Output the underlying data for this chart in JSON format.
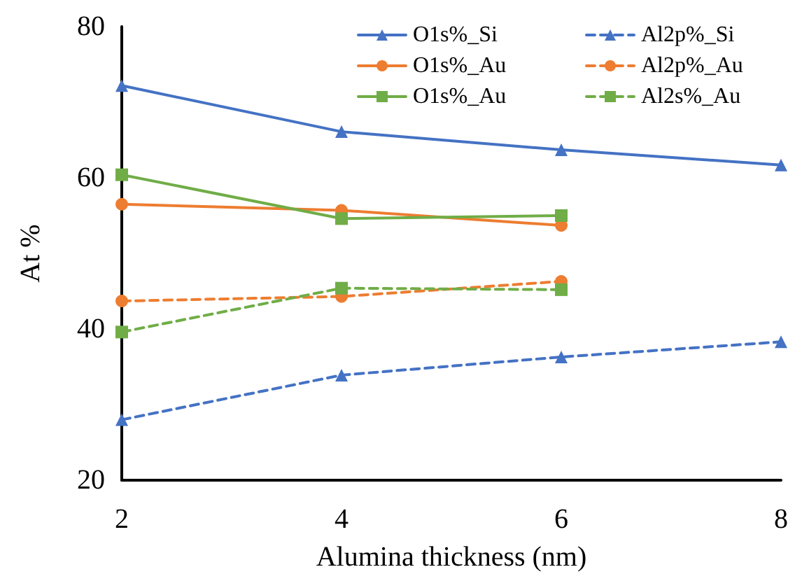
{
  "chart_data": {
    "type": "line",
    "xlabel": "Alumina thickness (nm)",
    "ylabel": "At %",
    "x": [
      2,
      4,
      6,
      8
    ],
    "xlim": [
      2,
      8
    ],
    "xticks": [
      2,
      4,
      6,
      8
    ],
    "ylim": [
      20,
      80
    ],
    "yticks": [
      20,
      40,
      60,
      80
    ],
    "grid": false,
    "legend": "top right",
    "series": [
      {
        "name": "O1s%_Si",
        "color": "#4472c4",
        "values": [
          72.2,
          66.1,
          63.7,
          61.7
        ],
        "marker": "triangle",
        "line_style": "solid"
      },
      {
        "name": "Al2p%_Si",
        "color": "#4472c4",
        "values": [
          28.0,
          33.9,
          36.3,
          38.3
        ],
        "marker": "triangle",
        "line_style": "dashed"
      },
      {
        "name": "O1s%_Au",
        "color": "#ed7d31",
        "values": [
          56.5,
          55.7,
          53.7,
          null
        ],
        "marker": "circle",
        "line_style": "solid"
      },
      {
        "name": "Al2p%_Au",
        "color": "#ed7d31",
        "values": [
          43.7,
          44.3,
          46.3,
          null
        ],
        "marker": "circle",
        "line_style": "dashed"
      },
      {
        "name": "O1s%_Au",
        "color": "#70ad47",
        "values": [
          60.4,
          54.6,
          55.0,
          null
        ],
        "marker": "square",
        "line_style": "solid"
      },
      {
        "name": "Al2s%_Au",
        "color": "#70ad47",
        "values": [
          39.6,
          45.4,
          45.2,
          null
        ],
        "marker": "square",
        "line_style": "dashed"
      }
    ]
  }
}
